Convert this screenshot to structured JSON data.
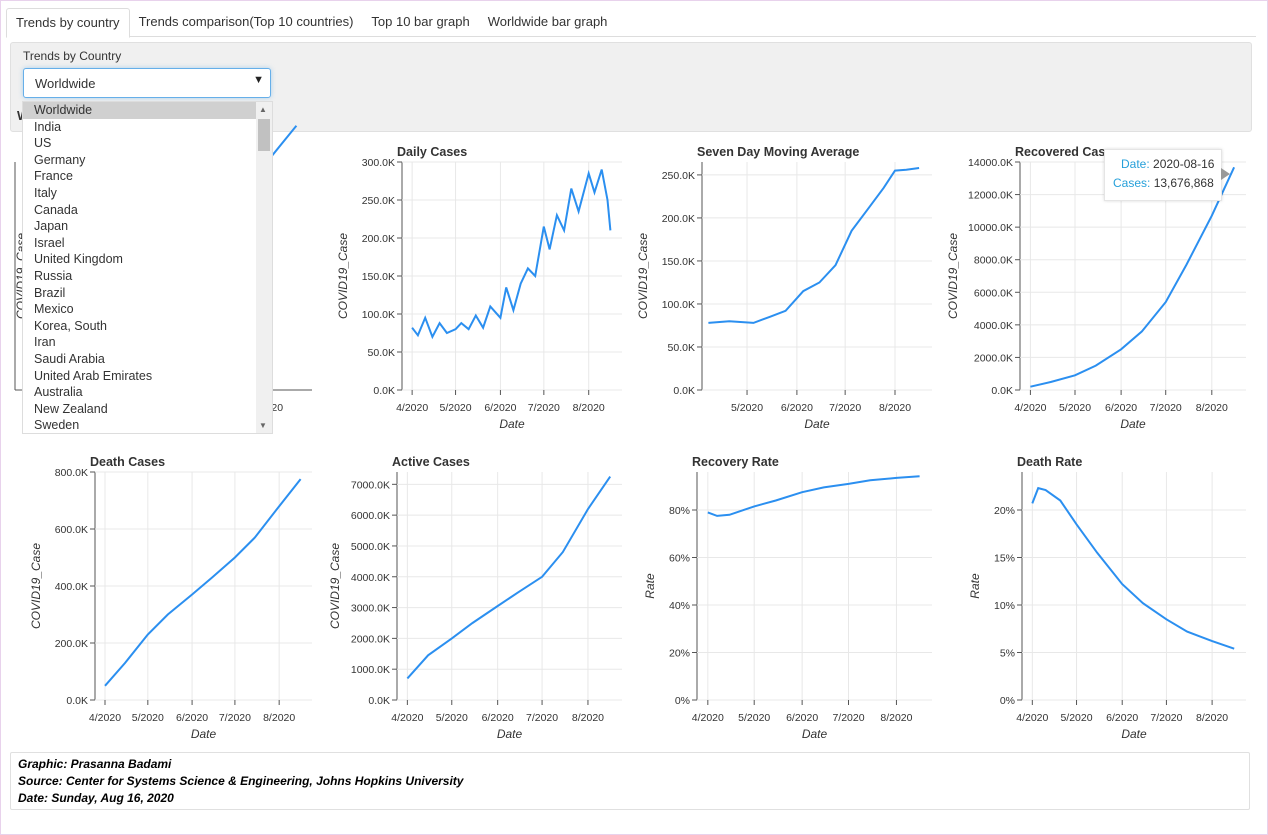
{
  "tabs": [
    "Trends by country",
    "Trends comparison(Top 10 countries)",
    "Top 10 bar graph",
    "Worldwide bar graph"
  ],
  "panel": {
    "label": "Trends by Country",
    "selected": "Worldwide",
    "truncated_title": "W"
  },
  "dropdown": {
    "options": [
      "Worldwide",
      "India",
      "US",
      "Germany",
      "France",
      "Italy",
      "Canada",
      "Japan",
      "Israel",
      "United Kingdom",
      "Russia",
      "Brazil",
      "Mexico",
      "Korea, South",
      "Iran",
      "Saudi Arabia",
      "United Arab Emirates",
      "Australia",
      "New Zealand",
      "Sweden"
    ]
  },
  "tooltip": {
    "date_label": "Date:",
    "date_value": "2020-08-16",
    "cases_label": "Cases:",
    "cases_value": "13,676,868"
  },
  "footer": {
    "graphic": "Graphic: Prasanna Badami",
    "source": "Source: Center for Systems Science & Engineering, Johns Hopkins University",
    "date": "Date: Sunday, Aug 16, 2020"
  },
  "colors": {
    "line": "#2b8ff0",
    "accent": "#66afe9"
  },
  "chart_data": [
    {
      "id": "total",
      "type": "line",
      "title": "",
      "xlabel": "",
      "ylabel": "COVID19_Case",
      "visible_xtick": "8/2020",
      "x": [
        "2020-06-25",
        "2020-08-16"
      ],
      "y": [
        7600,
        21300
      ]
    },
    {
      "id": "daily",
      "type": "line",
      "title": "Daily Cases",
      "xlabel": "Date",
      "ylabel": "COVID19_Case",
      "xticks": [
        "4/2020",
        "5/2020",
        "6/2020",
        "7/2020",
        "8/2020"
      ],
      "yticks": [
        "0.0K",
        "50.0K",
        "100.0K",
        "150.0K",
        "200.0K",
        "250.0K",
        "300.0K"
      ],
      "ylim": [
        0,
        300000
      ],
      "x": [
        "2020-04-01",
        "2020-04-05",
        "2020-04-10",
        "2020-04-15",
        "2020-04-20",
        "2020-04-25",
        "2020-05-01",
        "2020-05-05",
        "2020-05-10",
        "2020-05-15",
        "2020-05-20",
        "2020-05-25",
        "2020-06-01",
        "2020-06-05",
        "2020-06-10",
        "2020-06-15",
        "2020-06-20",
        "2020-06-25",
        "2020-07-01",
        "2020-07-05",
        "2020-07-10",
        "2020-07-15",
        "2020-07-20",
        "2020-07-25",
        "2020-08-01",
        "2020-08-05",
        "2020-08-10",
        "2020-08-14",
        "2020-08-16"
      ],
      "y": [
        82000,
        72000,
        95000,
        70000,
        88000,
        75000,
        80000,
        88000,
        80000,
        98000,
        82000,
        110000,
        95000,
        135000,
        105000,
        140000,
        160000,
        150000,
        215000,
        185000,
        230000,
        210000,
        265000,
        235000,
        285000,
        260000,
        290000,
        250000,
        210000
      ]
    },
    {
      "id": "ma7",
      "type": "line",
      "title": "Seven Day Moving Average",
      "xlabel": "Date",
      "ylabel": "COVID19_Case",
      "xticks": [
        "5/2020",
        "6/2020",
        "7/2020",
        "8/2020"
      ],
      "yticks": [
        "0.0K",
        "50.0K",
        "100.0K",
        "150.0K",
        "200.0K",
        "250.0K"
      ],
      "ylim": [
        0,
        265000
      ],
      "x": [
        "2020-04-07",
        "2020-04-20",
        "2020-05-05",
        "2020-05-15",
        "2020-05-25",
        "2020-06-05",
        "2020-06-15",
        "2020-06-25",
        "2020-07-05",
        "2020-07-15",
        "2020-07-25",
        "2020-08-01",
        "2020-08-08",
        "2020-08-16"
      ],
      "y": [
        78000,
        80000,
        78000,
        85000,
        92000,
        115000,
        125000,
        145000,
        185000,
        210000,
        235000,
        255000,
        256000,
        258000
      ]
    },
    {
      "id": "recovered",
      "type": "line",
      "title": "Recovered Cases",
      "xlabel": "Date",
      "ylabel": "COVID19_Case",
      "xticks": [
        "4/2020",
        "5/2020",
        "6/2020",
        "7/2020",
        "8/2020"
      ],
      "yticks": [
        "0.0K",
        "2000.0K",
        "4000.0K",
        "6000.0K",
        "8000.0K",
        "10000.0K",
        "12000.0K",
        "14000.0K"
      ],
      "ylim": [
        0,
        14000000
      ],
      "x": [
        "2020-04-01",
        "2020-04-15",
        "2020-05-01",
        "2020-05-15",
        "2020-06-01",
        "2020-06-15",
        "2020-07-01",
        "2020-07-15",
        "2020-08-01",
        "2020-08-16"
      ],
      "y": [
        200000,
        500000,
        900000,
        1500000,
        2500000,
        3600000,
        5400000,
        7700000,
        10700000,
        13676868
      ]
    },
    {
      "id": "deaths",
      "type": "line",
      "title": "Death Cases",
      "xlabel": "Date",
      "ylabel": "COVID19_Case",
      "xticks": [
        "4/2020",
        "5/2020",
        "6/2020",
        "7/2020",
        "8/2020"
      ],
      "yticks": [
        "0.0K",
        "200.0K",
        "400.0K",
        "600.0K",
        "800.0K"
      ],
      "ylim": [
        0,
        800000
      ],
      "x": [
        "2020-04-01",
        "2020-04-15",
        "2020-05-01",
        "2020-05-15",
        "2020-06-01",
        "2020-06-15",
        "2020-07-01",
        "2020-07-15",
        "2020-08-01",
        "2020-08-16"
      ],
      "y": [
        50000,
        130000,
        230000,
        300000,
        370000,
        430000,
        500000,
        570000,
        680000,
        775000
      ]
    },
    {
      "id": "active",
      "type": "line",
      "title": "Active Cases",
      "xlabel": "Date",
      "ylabel": "COVID19_Case",
      "xticks": [
        "4/2020",
        "5/2020",
        "6/2020",
        "7/2020",
        "8/2020"
      ],
      "yticks": [
        "0.0K",
        "1000.0K",
        "2000.0K",
        "3000.0K",
        "4000.0K",
        "5000.0K",
        "6000.0K",
        "7000.0K"
      ],
      "ylim": [
        0,
        7400000
      ],
      "x": [
        "2020-04-01",
        "2020-04-15",
        "2020-05-01",
        "2020-05-15",
        "2020-06-01",
        "2020-06-15",
        "2020-07-01",
        "2020-07-15",
        "2020-08-01",
        "2020-08-16"
      ],
      "y": [
        700000,
        1450000,
        2000000,
        2500000,
        3050000,
        3500000,
        4000000,
        4800000,
        6200000,
        7250000
      ]
    },
    {
      "id": "recovery_rate",
      "type": "line",
      "title": "Recovery Rate",
      "xlabel": "Date",
      "ylabel": "Rate",
      "xticks": [
        "4/2020",
        "5/2020",
        "6/2020",
        "7/2020",
        "8/2020"
      ],
      "yticks": [
        "0%",
        "20%",
        "40%",
        "60%",
        "80%"
      ],
      "ylim": [
        0,
        96
      ],
      "x": [
        "2020-04-01",
        "2020-04-07",
        "2020-04-15",
        "2020-05-01",
        "2020-05-15",
        "2020-06-01",
        "2020-06-15",
        "2020-07-01",
        "2020-07-15",
        "2020-08-01",
        "2020-08-16"
      ],
      "y": [
        79,
        77.5,
        78,
        81.5,
        84,
        87.5,
        89.5,
        91,
        92.5,
        93.5,
        94.2
      ]
    },
    {
      "id": "death_rate",
      "type": "line",
      "title": "Death Rate",
      "xlabel": "Date",
      "ylabel": "Rate",
      "xticks": [
        "4/2020",
        "5/2020",
        "6/2020",
        "7/2020",
        "8/2020"
      ],
      "yticks": [
        "0%",
        "5%",
        "10%",
        "15%",
        "20%"
      ],
      "ylim": [
        0,
        24
      ],
      "x": [
        "2020-04-01",
        "2020-04-05",
        "2020-04-10",
        "2020-04-20",
        "2020-05-01",
        "2020-05-15",
        "2020-06-01",
        "2020-06-15",
        "2020-07-01",
        "2020-07-15",
        "2020-08-01",
        "2020-08-16"
      ],
      "y": [
        20.7,
        22.3,
        22.1,
        21.0,
        18.5,
        15.5,
        12.2,
        10.2,
        8.5,
        7.2,
        6.2,
        5.4
      ]
    }
  ]
}
